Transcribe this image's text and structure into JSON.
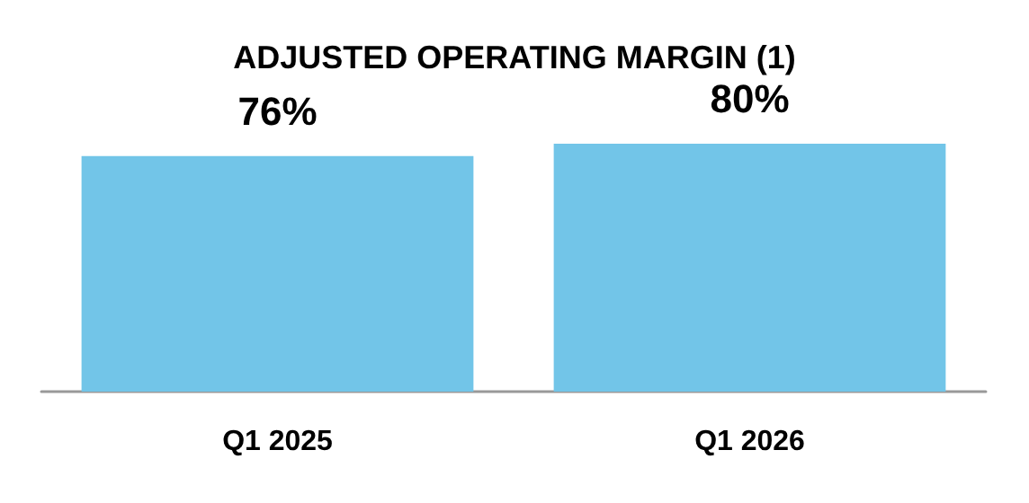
{
  "chart_data": {
    "type": "bar",
    "title": "ADJUSTED OPERATING MARGIN (1)",
    "categories": [
      "Q1 2025",
      "Q1 2026"
    ],
    "values": [
      76,
      80
    ],
    "value_labels": [
      "76%",
      "80%"
    ],
    "color": "#72c5e8"
  }
}
